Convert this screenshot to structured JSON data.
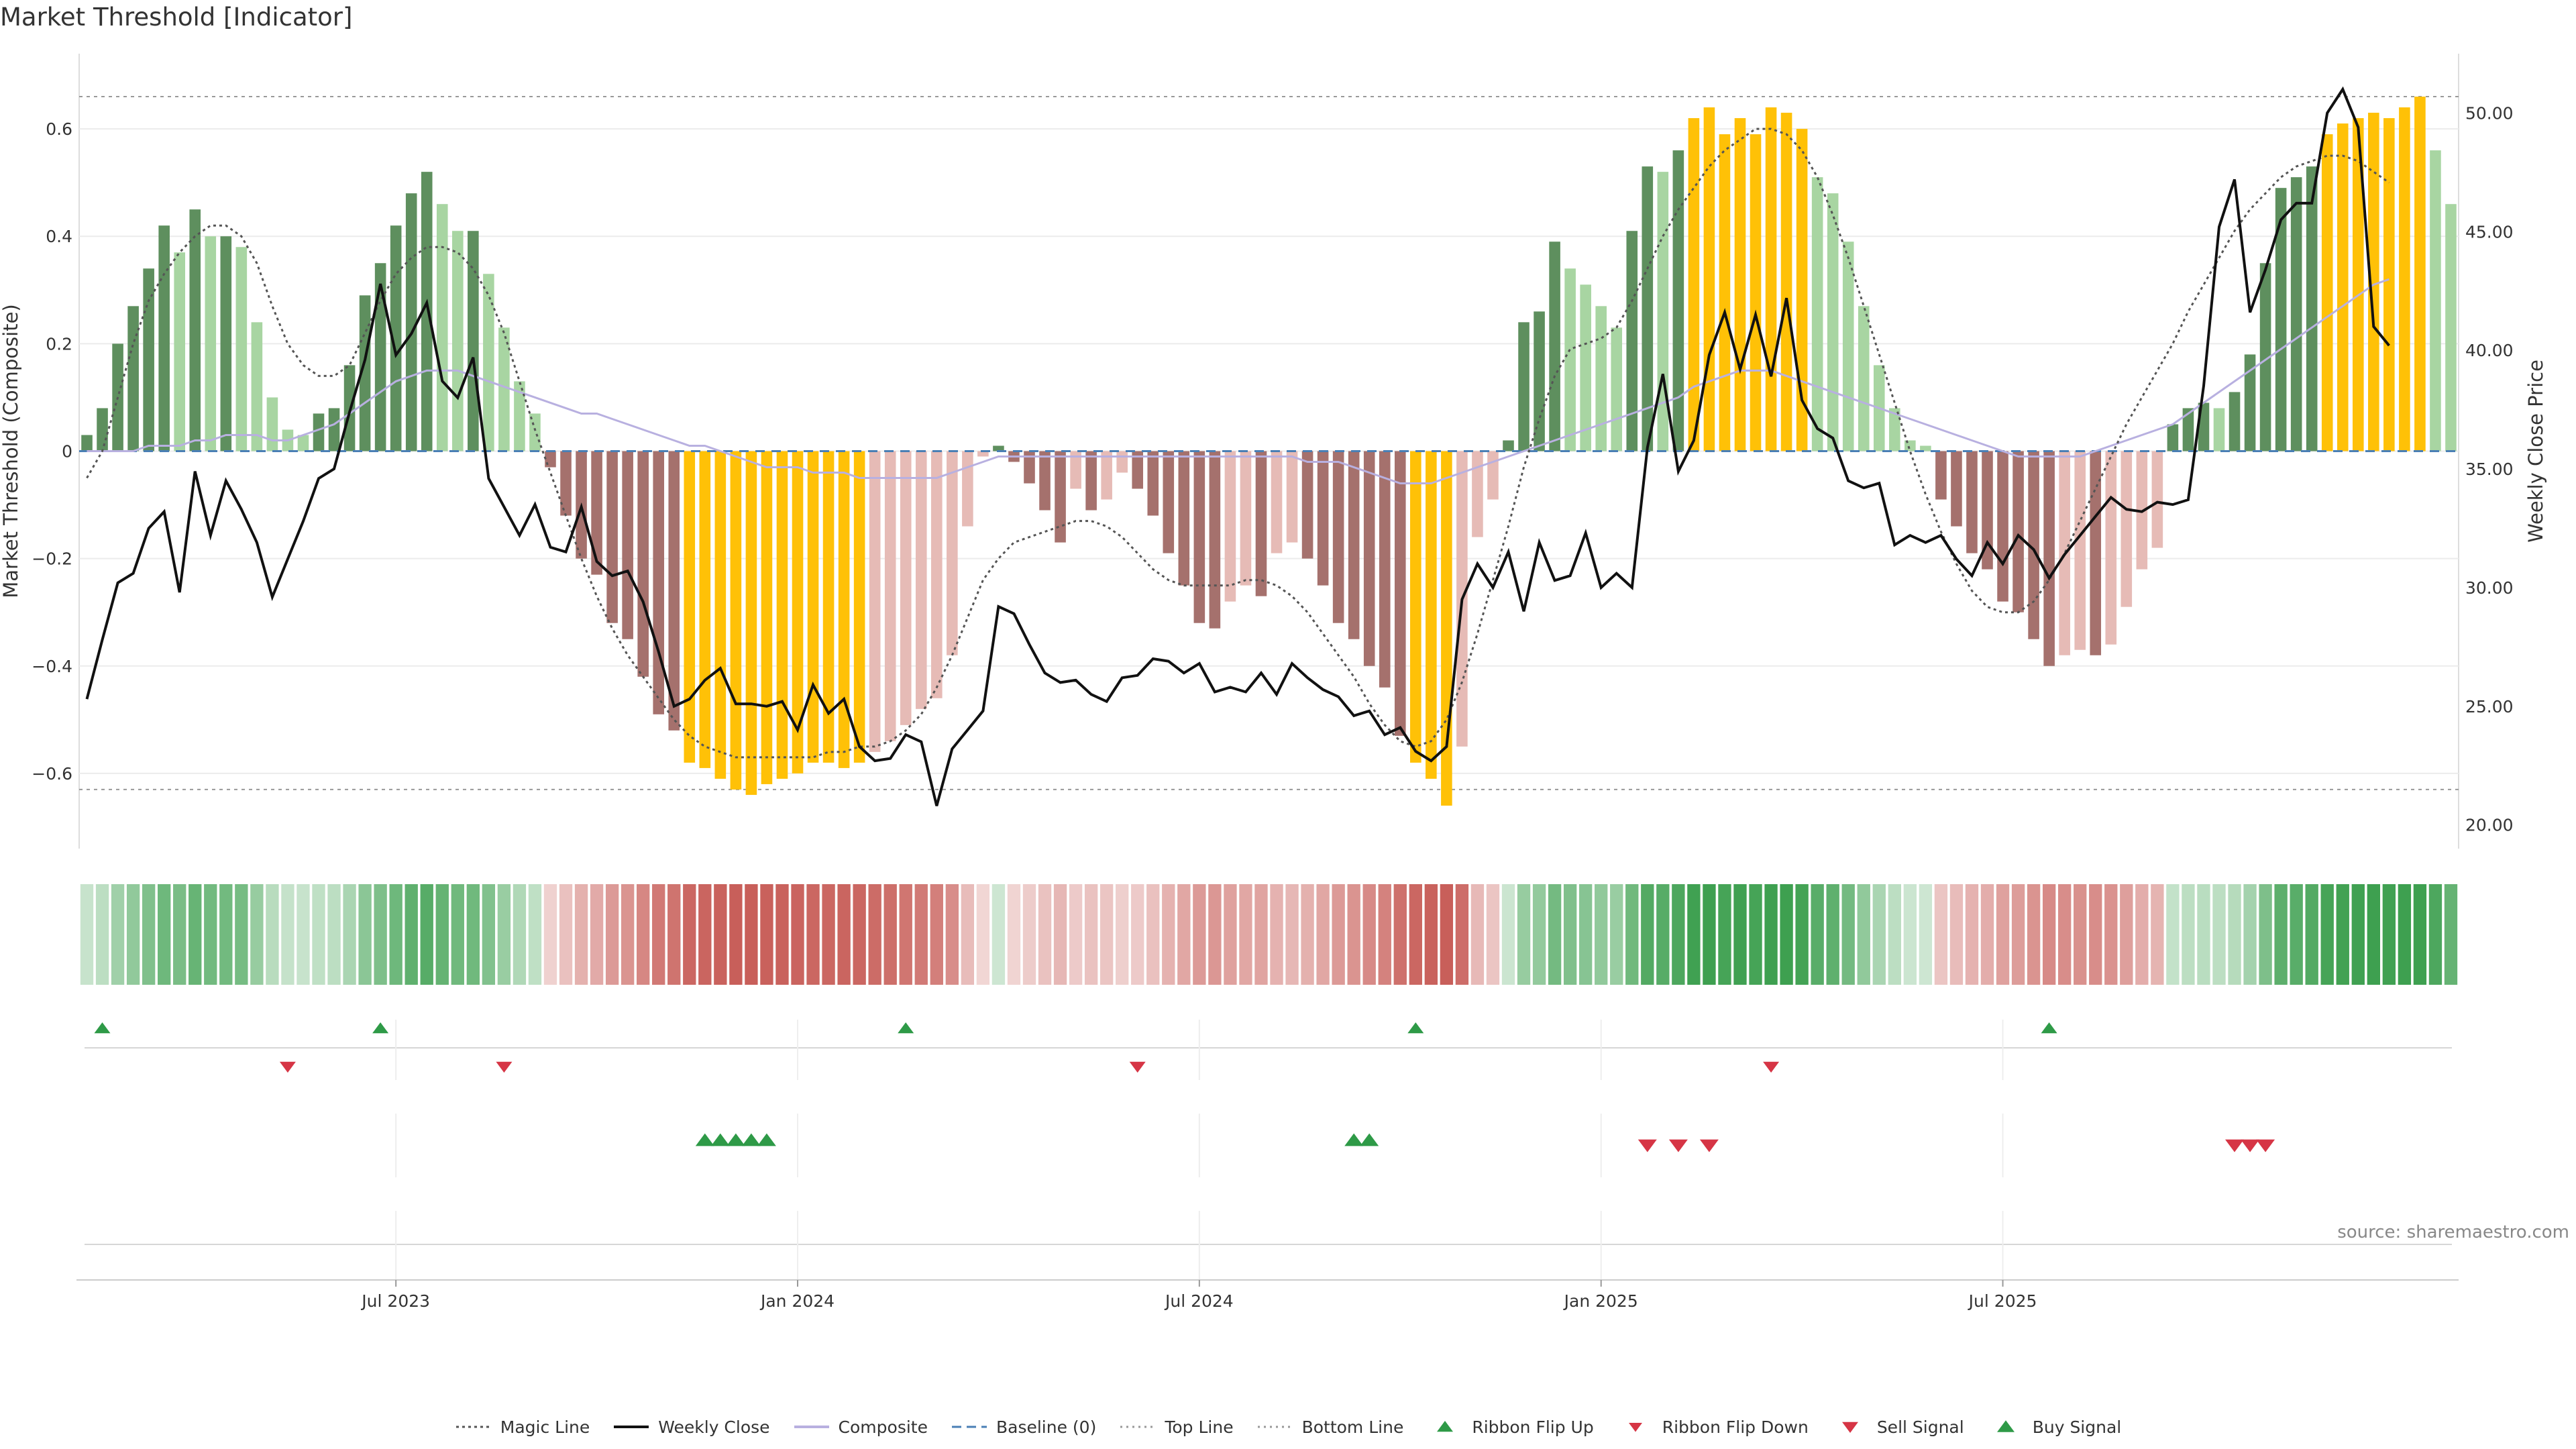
{
  "title": "Market Threshold [Indicator]",
  "source": "source: sharemaestro.com",
  "chart_data": {
    "type": "bar",
    "title": "Market Threshold [Indicator]",
    "ylabel_left": "Market Threshold (Composite)",
    "ylabel_right": "Weekly Close Price",
    "ylim_left": [
      -0.74,
      0.74
    ],
    "ylim_right": [
      19.0,
      52.5
    ],
    "yticks_left": [
      0.6,
      0.4,
      0.2,
      0,
      -0.2,
      -0.4,
      -0.6
    ],
    "yticks_left_labels": [
      "0.6",
      "0.4",
      "0.2",
      "0",
      "−0.2",
      "−0.4",
      "−0.6"
    ],
    "yticks_right": [
      50,
      45,
      40,
      35,
      30,
      25,
      20
    ],
    "yticks_right_labels": [
      "50.00",
      "45.00",
      "40.00",
      "35.00",
      "30.00",
      "25.00",
      "20.00"
    ],
    "xticks": [
      {
        "label": "Jul 2023",
        "week": 20
      },
      {
        "label": "Jan 2024",
        "week": 46
      },
      {
        "label": "Jul 2024",
        "week": 72
      },
      {
        "label": "Jan 2025",
        "week": 98
      },
      {
        "label": "Jul 2025",
        "week": 124
      }
    ],
    "top_line": 0.66,
    "bottom_line": -0.63,
    "baseline": 0,
    "grid": true,
    "legend_position": "bottom",
    "colors": {
      "pos_dark": "#5e8f5e",
      "pos_light": "#a8d5a2",
      "neg_dark": "#a5716d",
      "neg_light": "#e6bbb6",
      "extreme": "#ffc107",
      "magic": "#555555",
      "close": "#111111",
      "composite": "#b8b0e0",
      "baseline": "#4a7fb5",
      "buy": "#2e9a47",
      "sell": "#d63545"
    },
    "series": [
      {
        "name": "Market Threshold (Composite)",
        "values": [
          0.03,
          0.08,
          0.2,
          0.27,
          0.34,
          0.42,
          0.37,
          0.45,
          0.4,
          0.4,
          0.38,
          0.24,
          0.1,
          0.04,
          0.03,
          0.07,
          0.08,
          0.16,
          0.29,
          0.35,
          0.42,
          0.48,
          0.52,
          0.46,
          0.41,
          0.41,
          0.33,
          0.23,
          0.13,
          0.07,
          -0.03,
          -0.12,
          -0.2,
          -0.23,
          -0.32,
          -0.35,
          -0.42,
          -0.49,
          -0.52,
          -0.58,
          -0.59,
          -0.61,
          -0.63,
          -0.64,
          -0.62,
          -0.61,
          -0.6,
          -0.58,
          -0.58,
          -0.59,
          -0.58,
          -0.56,
          -0.54,
          -0.51,
          -0.48,
          -0.46,
          -0.38,
          -0.14,
          -0.01,
          0.01,
          -0.02,
          -0.06,
          -0.11,
          -0.17,
          -0.07,
          -0.11,
          -0.09,
          -0.04,
          -0.07,
          -0.12,
          -0.19,
          -0.25,
          -0.32,
          -0.33,
          -0.28,
          -0.25,
          -0.27,
          -0.19,
          -0.17,
          -0.2,
          -0.25,
          -0.32,
          -0.35,
          -0.4,
          -0.44,
          -0.53,
          -0.58,
          -0.61,
          -0.66,
          -0.55,
          -0.16,
          -0.09,
          0.02,
          0.24,
          0.26,
          0.39,
          0.34,
          0.31,
          0.27,
          0.23,
          0.41,
          0.53,
          0.52,
          0.56,
          0.62,
          0.64,
          0.59,
          0.62,
          0.59,
          0.64,
          0.63,
          0.6,
          0.51,
          0.48,
          0.39,
          0.27,
          0.16,
          0.08,
          0.02,
          0.01,
          -0.09,
          -0.14,
          -0.19,
          -0.22,
          -0.28,
          -0.3,
          -0.35,
          -0.4,
          -0.38,
          -0.37,
          -0.38,
          -0.36,
          -0.29,
          -0.22,
          -0.18,
          0.05,
          0.08,
          0.09,
          0.08,
          0.11,
          0.18,
          0.35,
          0.49,
          0.51,
          0.53,
          0.59,
          0.61,
          0.62,
          0.63,
          0.62,
          0.64,
          0.66,
          0.56,
          0.46
        ]
      },
      {
        "name": "Weekly Close",
        "values": [
          25.3,
          27.8,
          30.2,
          30.6,
          32.5,
          33.2,
          29.8,
          34.9,
          32.2,
          34.5,
          33.3,
          31.9,
          29.6,
          31.2,
          32.8,
          34.6,
          35.0,
          37.4,
          39.6,
          42.8,
          39.8,
          40.7,
          42.0,
          38.7,
          38.0,
          39.7,
          34.6,
          33.4,
          32.2,
          33.5,
          31.7,
          31.5,
          33.4,
          31.1,
          30.5,
          30.7,
          29.4,
          27.3,
          25.0,
          25.3,
          26.1,
          26.6,
          25.1,
          25.1,
          25.0,
          25.2,
          24.0,
          25.9,
          24.7,
          25.3,
          23.3,
          22.7,
          22.8,
          23.8,
          23.5,
          20.8,
          23.2,
          24.0,
          24.8,
          29.2,
          28.9,
          27.6,
          26.4,
          26.0,
          26.1,
          25.5,
          25.2,
          26.2,
          26.3,
          27.0,
          26.9,
          26.4,
          26.8,
          25.6,
          25.8,
          25.6,
          26.4,
          25.5,
          26.8,
          26.2,
          25.7,
          25.4,
          24.6,
          24.8,
          23.8,
          24.1,
          23.1,
          22.7,
          23.3,
          29.5,
          31.0,
          30.0,
          31.5,
          29.0,
          31.9,
          30.3,
          30.5,
          32.3,
          30.0,
          30.6,
          30.0,
          35.9,
          39.0,
          34.9,
          36.2,
          39.8,
          41.6,
          39.2,
          41.5,
          38.9,
          42.2,
          37.9,
          36.7,
          36.3,
          34.5,
          34.2,
          34.4,
          31.8,
          32.2,
          31.9,
          32.2,
          31.2,
          30.5,
          31.9,
          31.0,
          32.2,
          31.6,
          30.4,
          31.4,
          32.2,
          33.0,
          33.8,
          33.3,
          33.2,
          33.6,
          33.5,
          33.7,
          38.5,
          45.2,
          47.2,
          41.6,
          43.4,
          45.5,
          46.2,
          46.2,
          50.0,
          51.0,
          49.4,
          41.0,
          40.2
        ]
      },
      {
        "name": "Magic Line",
        "values": [
          -0.05,
          0.0,
          0.1,
          0.2,
          0.28,
          0.33,
          0.37,
          0.4,
          0.42,
          0.42,
          0.4,
          0.35,
          0.27,
          0.2,
          0.16,
          0.14,
          0.14,
          0.16,
          0.22,
          0.28,
          0.33,
          0.36,
          0.38,
          0.38,
          0.37,
          0.34,
          0.29,
          0.22,
          0.13,
          0.04,
          -0.04,
          -0.12,
          -0.2,
          -0.27,
          -0.33,
          -0.38,
          -0.42,
          -0.46,
          -0.5,
          -0.53,
          -0.55,
          -0.56,
          -0.57,
          -0.57,
          -0.57,
          -0.57,
          -0.57,
          -0.57,
          -0.56,
          -0.56,
          -0.55,
          -0.55,
          -0.54,
          -0.52,
          -0.49,
          -0.44,
          -0.38,
          -0.31,
          -0.24,
          -0.2,
          -0.17,
          -0.16,
          -0.15,
          -0.14,
          -0.13,
          -0.13,
          -0.14,
          -0.16,
          -0.19,
          -0.22,
          -0.24,
          -0.25,
          -0.25,
          -0.25,
          -0.25,
          -0.24,
          -0.24,
          -0.25,
          -0.27,
          -0.3,
          -0.34,
          -0.38,
          -0.42,
          -0.47,
          -0.51,
          -0.54,
          -0.55,
          -0.54,
          -0.5,
          -0.43,
          -0.34,
          -0.24,
          -0.14,
          -0.03,
          0.06,
          0.14,
          0.19,
          0.2,
          0.21,
          0.23,
          0.28,
          0.34,
          0.4,
          0.45,
          0.49,
          0.53,
          0.56,
          0.58,
          0.6,
          0.6,
          0.59,
          0.56,
          0.51,
          0.44,
          0.36,
          0.27,
          0.18,
          0.09,
          0.0,
          -0.08,
          -0.15,
          -0.21,
          -0.26,
          -0.29,
          -0.3,
          -0.3,
          -0.28,
          -0.24,
          -0.19,
          -0.13,
          -0.07,
          -0.01,
          0.05,
          0.1,
          0.15,
          0.2,
          0.26,
          0.31,
          0.36,
          0.41,
          0.45,
          0.48,
          0.51,
          0.53,
          0.54,
          0.55,
          0.55,
          0.54,
          0.52,
          0.5
        ]
      },
      {
        "name": "Composite",
        "values": [
          0.0,
          0.0,
          0.0,
          0.0,
          0.01,
          0.01,
          0.01,
          0.02,
          0.02,
          0.03,
          0.03,
          0.03,
          0.02,
          0.02,
          0.03,
          0.04,
          0.05,
          0.07,
          0.09,
          0.11,
          0.13,
          0.14,
          0.15,
          0.15,
          0.15,
          0.14,
          0.13,
          0.12,
          0.11,
          0.1,
          0.09,
          0.08,
          0.07,
          0.07,
          0.06,
          0.05,
          0.04,
          0.03,
          0.02,
          0.01,
          0.01,
          0.0,
          -0.01,
          -0.02,
          -0.03,
          -0.03,
          -0.03,
          -0.04,
          -0.04,
          -0.04,
          -0.05,
          -0.05,
          -0.05,
          -0.05,
          -0.05,
          -0.05,
          -0.04,
          -0.03,
          -0.02,
          -0.01,
          -0.01,
          -0.01,
          -0.01,
          -0.01,
          -0.01,
          -0.01,
          -0.01,
          -0.01,
          -0.01,
          -0.01,
          -0.01,
          -0.01,
          -0.01,
          -0.01,
          -0.01,
          -0.01,
          -0.01,
          -0.01,
          -0.01,
          -0.02,
          -0.02,
          -0.02,
          -0.03,
          -0.04,
          -0.05,
          -0.06,
          -0.06,
          -0.06,
          -0.05,
          -0.04,
          -0.03,
          -0.02,
          -0.01,
          0.0,
          0.01,
          0.02,
          0.03,
          0.04,
          0.05,
          0.06,
          0.07,
          0.08,
          0.09,
          0.1,
          0.12,
          0.13,
          0.14,
          0.15,
          0.15,
          0.15,
          0.14,
          0.13,
          0.12,
          0.11,
          0.1,
          0.09,
          0.08,
          0.07,
          0.06,
          0.05,
          0.04,
          0.03,
          0.02,
          0.01,
          0.0,
          -0.01,
          -0.01,
          -0.01,
          -0.01,
          -0.01,
          0.0,
          0.01,
          0.02,
          0.03,
          0.04,
          0.05,
          0.07,
          0.09,
          0.11,
          0.13,
          0.15,
          0.17,
          0.19,
          0.21,
          0.23,
          0.25,
          0.27,
          0.29,
          0.31,
          0.32
        ]
      }
    ],
    "markers": {
      "ribbon_flip_up": [
        1,
        19,
        53,
        86,
        127
      ],
      "ribbon_flip_down": [
        13,
        27,
        68,
        109
      ],
      "buy_signal": [
        40,
        41,
        42,
        43,
        44,
        82,
        83
      ],
      "sell_signal": [
        101,
        103,
        105,
        139,
        140,
        141
      ]
    },
    "legend": [
      {
        "label": "Magic Line",
        "kind": "dotted",
        "color": "#555555"
      },
      {
        "label": "Weekly Close",
        "kind": "solid",
        "color": "#111111"
      },
      {
        "label": "Composite",
        "kind": "solid",
        "color": "#b8b0e0"
      },
      {
        "label": "Baseline (0)",
        "kind": "dashed",
        "color": "#4a7fb5"
      },
      {
        "label": "Top Line",
        "kind": "dotted-light",
        "color": "#999999"
      },
      {
        "label": "Bottom Line",
        "kind": "dotted-light",
        "color": "#999999"
      },
      {
        "label": "Ribbon Flip Up",
        "kind": "tri-up",
        "color": "#2e9a47"
      },
      {
        "label": "Ribbon Flip Down",
        "kind": "tri-down-small",
        "color": "#d63545"
      },
      {
        "label": "Sell Signal",
        "kind": "tri-down",
        "color": "#d63545"
      },
      {
        "label": "Buy Signal",
        "kind": "tri-up-big",
        "color": "#2e9a47"
      }
    ]
  }
}
